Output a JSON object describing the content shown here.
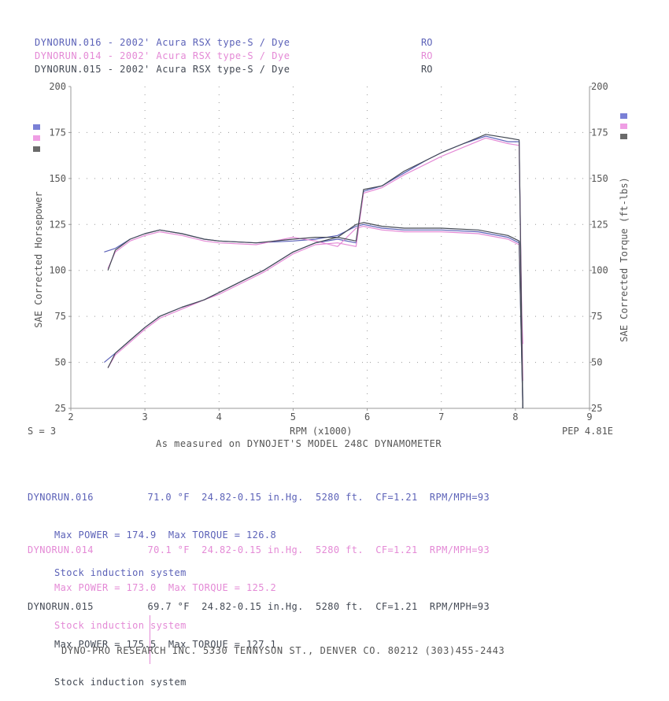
{
  "legend": {
    "runs": [
      {
        "name": "DYNORUN.016",
        "label": "DYNORUN.016 - 2002' Acura RSX type-S / Dye",
        "code": "RO",
        "color": "#5c62b8"
      },
      {
        "name": "DYNORUN.014",
        "label": "DYNORUN.014 - 2002' Acura RSX type-S / Dye",
        "code": "RO",
        "color": "#e48ad6"
      },
      {
        "name": "DYNORUN.015",
        "label": "DYNORUN.015 - 2002' Acura RSX type-S / Dye",
        "code": "RO",
        "color": "#444a55"
      }
    ]
  },
  "axis": {
    "left_label": "SAE Corrected Horsepower",
    "right_label": "SAE Corrected Torque (ft-lbs)",
    "x_label": "RPM (x1000)",
    "subtitle": "As measured on DYNOJET'S MODEL 248C DYNAMOMETER",
    "smoothing": "S = 3",
    "pep": "PEP 4.81E"
  },
  "runs_info": [
    {
      "name": "DYNORUN.016",
      "temp": "71.0 °F",
      "baro": "24.82-0.15 in.Hg.",
      "alt": "5280 ft.",
      "cf": "CF=1.21",
      "rpm_mph": "RPM/MPH=93",
      "max_line": "Max POWER = 174.9  Max TORQUE = 126.8",
      "note": "Stock induction system"
    },
    {
      "name": "DYNORUN.014",
      "temp": "70.1 °F",
      "baro": "24.82-0.15 in.Hg.",
      "alt": "5280 ft.",
      "cf": "CF=1.21",
      "rpm_mph": "RPM/MPH=93",
      "max_line": "Max POWER = 173.0  Max TORQUE = 125.2",
      "note": "Stock induction system"
    },
    {
      "name": "DYNORUN.015",
      "temp": "69.7 °F",
      "baro": "24.82-0.15 in.Hg.",
      "alt": "5280 ft.",
      "cf": "CF=1.21",
      "rpm_mph": "RPM/MPH=93",
      "max_line": "Max POWER = 175.5  Max TORQUE = 127.1",
      "note": "Stock induction system"
    }
  ],
  "footer": "DYNO-PRO RESEARCH INC. 5330 TENNYSON ST., DENVER CO. 80212 (303)455-2443",
  "chart_data": {
    "type": "line",
    "xlabel": "RPM (x1000)",
    "ylabel": "SAE Corrected Horsepower",
    "y2label": "SAE Corrected Torque (ft-lbs)",
    "xlim": [
      2,
      9
    ],
    "ylim": [
      25,
      200
    ],
    "y2lim": [
      25,
      200
    ],
    "x_ticks": [
      2,
      3,
      4,
      5,
      6,
      7,
      8,
      9
    ],
    "y_ticks": [
      25,
      50,
      75,
      100,
      125,
      150,
      175,
      200
    ],
    "y2_ticks": [
      25,
      50,
      75,
      100,
      125,
      150,
      175,
      200
    ],
    "grid": "dotted",
    "series": [
      {
        "name": "DYNORUN.016",
        "measure": "horsepower",
        "color": "#5c62b8",
        "x": [
          2.45,
          2.6,
          2.8,
          3.0,
          3.2,
          3.5,
          3.8,
          4.0,
          4.3,
          4.6,
          5.0,
          5.3,
          5.6,
          5.85,
          5.95,
          6.2,
          6.5,
          6.8,
          7.0,
          7.3,
          7.6,
          7.9,
          8.05,
          8.1
        ],
        "y": [
          50,
          55,
          62,
          69,
          75,
          80,
          84,
          88,
          94,
          100,
          110,
          115,
          117,
          115,
          143,
          146,
          153,
          160,
          164,
          169,
          173,
          170,
          170,
          25
        ]
      },
      {
        "name": "DYNORUN.016",
        "measure": "torque",
        "color": "#5c62b8",
        "x": [
          2.45,
          2.6,
          2.8,
          3.0,
          3.2,
          3.5,
          3.8,
          4.0,
          4.5,
          5.0,
          5.3,
          5.6,
          5.85,
          5.95,
          6.2,
          6.5,
          7.0,
          7.5,
          7.9,
          8.05,
          8.1
        ],
        "y": [
          110,
          112,
          117,
          120,
          122,
          120,
          117,
          116,
          115,
          116,
          117,
          119,
          124,
          125,
          123,
          122,
          122,
          121,
          118,
          115,
          25
        ]
      },
      {
        "name": "DYNORUN.014",
        "measure": "horsepower",
        "color": "#e48ad6",
        "x": [
          2.5,
          2.6,
          2.8,
          3.0,
          3.2,
          3.5,
          3.8,
          4.0,
          4.3,
          4.6,
          5.0,
          5.3,
          5.6,
          5.85,
          5.95,
          6.2,
          6.5,
          6.8,
          7.0,
          7.3,
          7.6,
          7.9,
          8.05,
          8.1
        ],
        "y": [
          47,
          54,
          61,
          68,
          74,
          79,
          84,
          87,
          93,
          99,
          109,
          114,
          115,
          113,
          142,
          145,
          152,
          158,
          162,
          167,
          172,
          169,
          168,
          40
        ]
      },
      {
        "name": "DYNORUN.014",
        "measure": "torque",
        "color": "#e48ad6",
        "x": [
          2.5,
          2.6,
          2.8,
          3.0,
          3.2,
          3.5,
          3.8,
          4.0,
          4.5,
          5.0,
          5.3,
          5.6,
          5.85,
          5.95,
          6.2,
          6.5,
          7.0,
          7.5,
          7.9,
          8.05,
          8.1
        ],
        "y": [
          101,
          110,
          116,
          119,
          121,
          119,
          116,
          115,
          114,
          118,
          116,
          113,
          123,
          124,
          122,
          121,
          121,
          120,
          117,
          114,
          60
        ]
      },
      {
        "name": "DYNORUN.015",
        "measure": "horsepower",
        "color": "#444a55",
        "x": [
          2.5,
          2.6,
          2.8,
          3.0,
          3.2,
          3.5,
          3.8,
          4.0,
          4.3,
          4.6,
          5.0,
          5.3,
          5.6,
          5.85,
          5.95,
          6.2,
          6.5,
          6.8,
          7.0,
          7.3,
          7.6,
          7.9,
          8.05,
          8.1
        ],
        "y": [
          47,
          55,
          62,
          69,
          75,
          80,
          84,
          88,
          94,
          100,
          110,
          115,
          118,
          116,
          144,
          146,
          154,
          160,
          164,
          169,
          174,
          172,
          171,
          25
        ]
      },
      {
        "name": "DYNORUN.015",
        "measure": "torque",
        "color": "#444a55",
        "x": [
          2.5,
          2.6,
          2.8,
          3.0,
          3.2,
          3.5,
          3.8,
          4.0,
          4.5,
          5.0,
          5.3,
          5.6,
          5.85,
          5.95,
          6.2,
          6.5,
          7.0,
          7.5,
          7.9,
          8.05,
          8.1
        ],
        "y": [
          100,
          111,
          117,
          120,
          122,
          120,
          117,
          116,
          115,
          117,
          118,
          118,
          125,
          126,
          124,
          123,
          123,
          122,
          119,
          116,
          25
        ]
      }
    ]
  }
}
